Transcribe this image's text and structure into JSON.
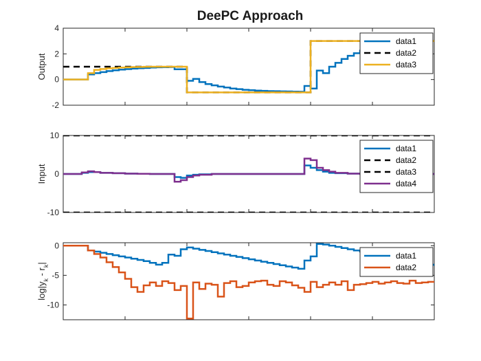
{
  "figure": {
    "title": "DeePC Approach"
  },
  "chart_data": [
    {
      "type": "line",
      "ylabel": "Output",
      "ylim": [
        -2,
        4
      ],
      "xlim": [
        0,
        60
      ],
      "yticks": [
        -2,
        0,
        2,
        4
      ],
      "ytick_labels": [
        "-2",
        "0",
        "2",
        "4"
      ],
      "step": true,
      "grid": false,
      "legend": "top-right",
      "series": [
        {
          "name": "data1",
          "color": "#0072BD",
          "dash": "solid",
          "x": [
            0,
            2,
            4,
            5,
            6,
            7,
            8,
            9,
            10,
            11,
            12,
            13,
            14,
            15,
            16,
            17,
            18,
            19,
            20,
            21,
            22,
            23,
            24,
            25,
            26,
            27,
            28,
            29,
            30,
            31,
            32,
            33,
            34,
            35,
            36,
            37,
            38,
            39,
            40,
            41,
            42,
            43,
            44,
            45,
            46,
            47,
            48,
            49,
            50,
            51,
            52,
            53,
            54,
            55,
            56,
            57,
            58,
            59,
            60
          ],
          "y": [
            0,
            0,
            0.4,
            0.5,
            0.58,
            0.66,
            0.72,
            0.77,
            0.81,
            0.85,
            0.88,
            0.9,
            0.93,
            0.95,
            0.96,
            0.97,
            0.8,
            0.8,
            -0.1,
            0.05,
            -0.2,
            -0.35,
            -0.45,
            -0.55,
            -0.62,
            -0.7,
            -0.75,
            -0.8,
            -0.83,
            -0.86,
            -0.88,
            -0.9,
            -0.91,
            -0.92,
            -0.93,
            -0.94,
            -0.95,
            -0.5,
            -0.7,
            0.7,
            0.5,
            1.0,
            1.3,
            1.6,
            1.85,
            2.05,
            2.25,
            2.4,
            2.55,
            2.65,
            2.75,
            2.82,
            2.88,
            2.92,
            2.95,
            2.98,
            3.0,
            3.0,
            3.0
          ]
        },
        {
          "name": "data2",
          "color": "#000000",
          "dash": "dashed",
          "x": [
            0,
            20,
            20,
            40,
            40,
            60
          ],
          "y": [
            1,
            1,
            -1,
            -1,
            3,
            3
          ]
        },
        {
          "name": "data3",
          "color": "#EDB120",
          "dash": "solid",
          "x": [
            0,
            4,
            5,
            6,
            7,
            8,
            9,
            10,
            11,
            12,
            13,
            14,
            15,
            16,
            17,
            18,
            19,
            20,
            40,
            60
          ],
          "y": [
            0,
            0.5,
            0.75,
            0.82,
            0.87,
            0.9,
            0.93,
            0.95,
            0.97,
            0.98,
            0.99,
            1.0,
            1.0,
            1.0,
            1.0,
            1.0,
            1.0,
            -1,
            3,
            3
          ]
        }
      ]
    },
    {
      "type": "line",
      "ylabel": "Input",
      "ylim": [
        -10,
        10
      ],
      "xlim": [
        0,
        60
      ],
      "yticks": [
        -10,
        0,
        10
      ],
      "ytick_labels": [
        "-10",
        "0",
        "10"
      ],
      "step": true,
      "grid": false,
      "legend": "top-right",
      "series": [
        {
          "name": "data1",
          "color": "#0072BD",
          "dash": "solid",
          "x": [
            0,
            3,
            4,
            6,
            8,
            10,
            12,
            14,
            16,
            18,
            19,
            20,
            21,
            22,
            24,
            26,
            28,
            30,
            32,
            34,
            36,
            38,
            39,
            40,
            41,
            42,
            43,
            44,
            46,
            48,
            50,
            52,
            54,
            56,
            58,
            60
          ],
          "y": [
            0,
            0.3,
            0.5,
            0.3,
            0.2,
            0.1,
            0.05,
            0,
            0,
            -0.8,
            -1.0,
            -0.4,
            -0.2,
            -0.1,
            0,
            0,
            0,
            0,
            0,
            0,
            0,
            0,
            2.2,
            1.6,
            1.0,
            0.6,
            0.3,
            0.2,
            0.1,
            0.05,
            0,
            0,
            0,
            0,
            0,
            0
          ]
        },
        {
          "name": "data2",
          "color": "#000000",
          "dash": "dashed",
          "x": [
            0,
            60
          ],
          "y": [
            10,
            10
          ]
        },
        {
          "name": "data3",
          "color": "#000000",
          "dash": "dashed",
          "x": [
            0,
            60
          ],
          "y": [
            -10,
            -10
          ]
        },
        {
          "name": "data4",
          "color": "#7E2F8E",
          "dash": "solid",
          "x": [
            0,
            3,
            4,
            5,
            6,
            8,
            10,
            12,
            14,
            16,
            18,
            19,
            20,
            21,
            22,
            24,
            26,
            28,
            30,
            32,
            34,
            36,
            38,
            39,
            40,
            41,
            42,
            43,
            44,
            46,
            48,
            50,
            52,
            54,
            56,
            58,
            60
          ],
          "y": [
            0,
            0.4,
            0.7,
            0.5,
            0.3,
            0.2,
            0.1,
            0.05,
            0,
            0,
            -2.0,
            -1.6,
            -0.8,
            -0.4,
            -0.2,
            0,
            0,
            0,
            0,
            0,
            0,
            0,
            0,
            4.0,
            3.6,
            1.6,
            1.0,
            0.6,
            0.3,
            0.1,
            0,
            0,
            0,
            0,
            0,
            0,
            0
          ]
        }
      ]
    },
    {
      "type": "line",
      "ylabel": "log|y_k - r_k|",
      "ylim": [
        -12.5,
        0.5
      ],
      "xlim": [
        0,
        60
      ],
      "yticks": [
        -10,
        -5,
        0
      ],
      "ytick_labels": [
        "-10",
        "-5",
        "0"
      ],
      "step": true,
      "grid": false,
      "legend": "top-right",
      "series": [
        {
          "name": "data1",
          "color": "#0072BD",
          "dash": "solid",
          "x": [
            0,
            4,
            5,
            6,
            7,
            8,
            9,
            10,
            11,
            12,
            13,
            14,
            15,
            16,
            17,
            18,
            19,
            20,
            21,
            22,
            23,
            24,
            25,
            26,
            27,
            28,
            29,
            30,
            31,
            32,
            33,
            34,
            35,
            36,
            37,
            38,
            39,
            40,
            41,
            42,
            43,
            44,
            45,
            46,
            47,
            48,
            49,
            50,
            51,
            52,
            53,
            54,
            55,
            56,
            57,
            58,
            59,
            60
          ],
          "y": [
            0,
            -0.8,
            -1.0,
            -1.2,
            -1.4,
            -1.6,
            -1.8,
            -2.0,
            -2.2,
            -2.4,
            -2.6,
            -2.9,
            -3.2,
            -2.9,
            -1.5,
            -1.7,
            -0.6,
            -0.3,
            -0.5,
            -0.7,
            -0.9,
            -1.1,
            -1.3,
            -1.5,
            -1.7,
            -1.9,
            -2.1,
            -2.3,
            -2.5,
            -2.7,
            -2.9,
            -3.1,
            -3.3,
            -3.5,
            -3.7,
            -3.9,
            -2.5,
            -1.8,
            0.3,
            0.2,
            0.0,
            -0.2,
            -0.4,
            -0.6,
            -0.8,
            -1.0,
            -1.2,
            -1.4,
            -1.6,
            -1.8,
            -2.0,
            -2.2,
            -2.4,
            -2.6,
            -2.8,
            -3.0,
            -3.2,
            -3.4
          ]
        },
        {
          "name": "data2",
          "color": "#D95319",
          "dash": "solid",
          "x": [
            0,
            4,
            5,
            6,
            7,
            8,
            9,
            10,
            11,
            12,
            13,
            14,
            15,
            16,
            17,
            18,
            19,
            20,
            21,
            22,
            23,
            24,
            25,
            26,
            27,
            28,
            29,
            30,
            31,
            32,
            33,
            34,
            35,
            36,
            37,
            38,
            39,
            40,
            41,
            42,
            43,
            44,
            45,
            46,
            47,
            48,
            49,
            50,
            51,
            52,
            53,
            54,
            55,
            56,
            57,
            58,
            59,
            60
          ],
          "y": [
            0,
            -0.8,
            -1.4,
            -2.0,
            -2.8,
            -3.6,
            -4.5,
            -5.6,
            -7.0,
            -7.8,
            -6.7,
            -6.2,
            -6.8,
            -6.0,
            -6.3,
            -7.5,
            -6.8,
            -12.3,
            -6.2,
            -7.3,
            -6.4,
            -6.6,
            -8.6,
            -6.3,
            -6.0,
            -7.0,
            -6.8,
            -6.2,
            -6.0,
            -5.9,
            -6.6,
            -6.8,
            -6.0,
            -6.2,
            -6.7,
            -7.1,
            -7.8,
            -6.1,
            -7.0,
            -6.6,
            -6.2,
            -6.6,
            -6.0,
            -7.5,
            -6.6,
            -6.5,
            -6.3,
            -6.1,
            -6.4,
            -6.2,
            -6.0,
            -6.3,
            -6.4,
            -5.9,
            -6.3,
            -6.2,
            -6.1,
            -6.2
          ]
        }
      ]
    }
  ]
}
